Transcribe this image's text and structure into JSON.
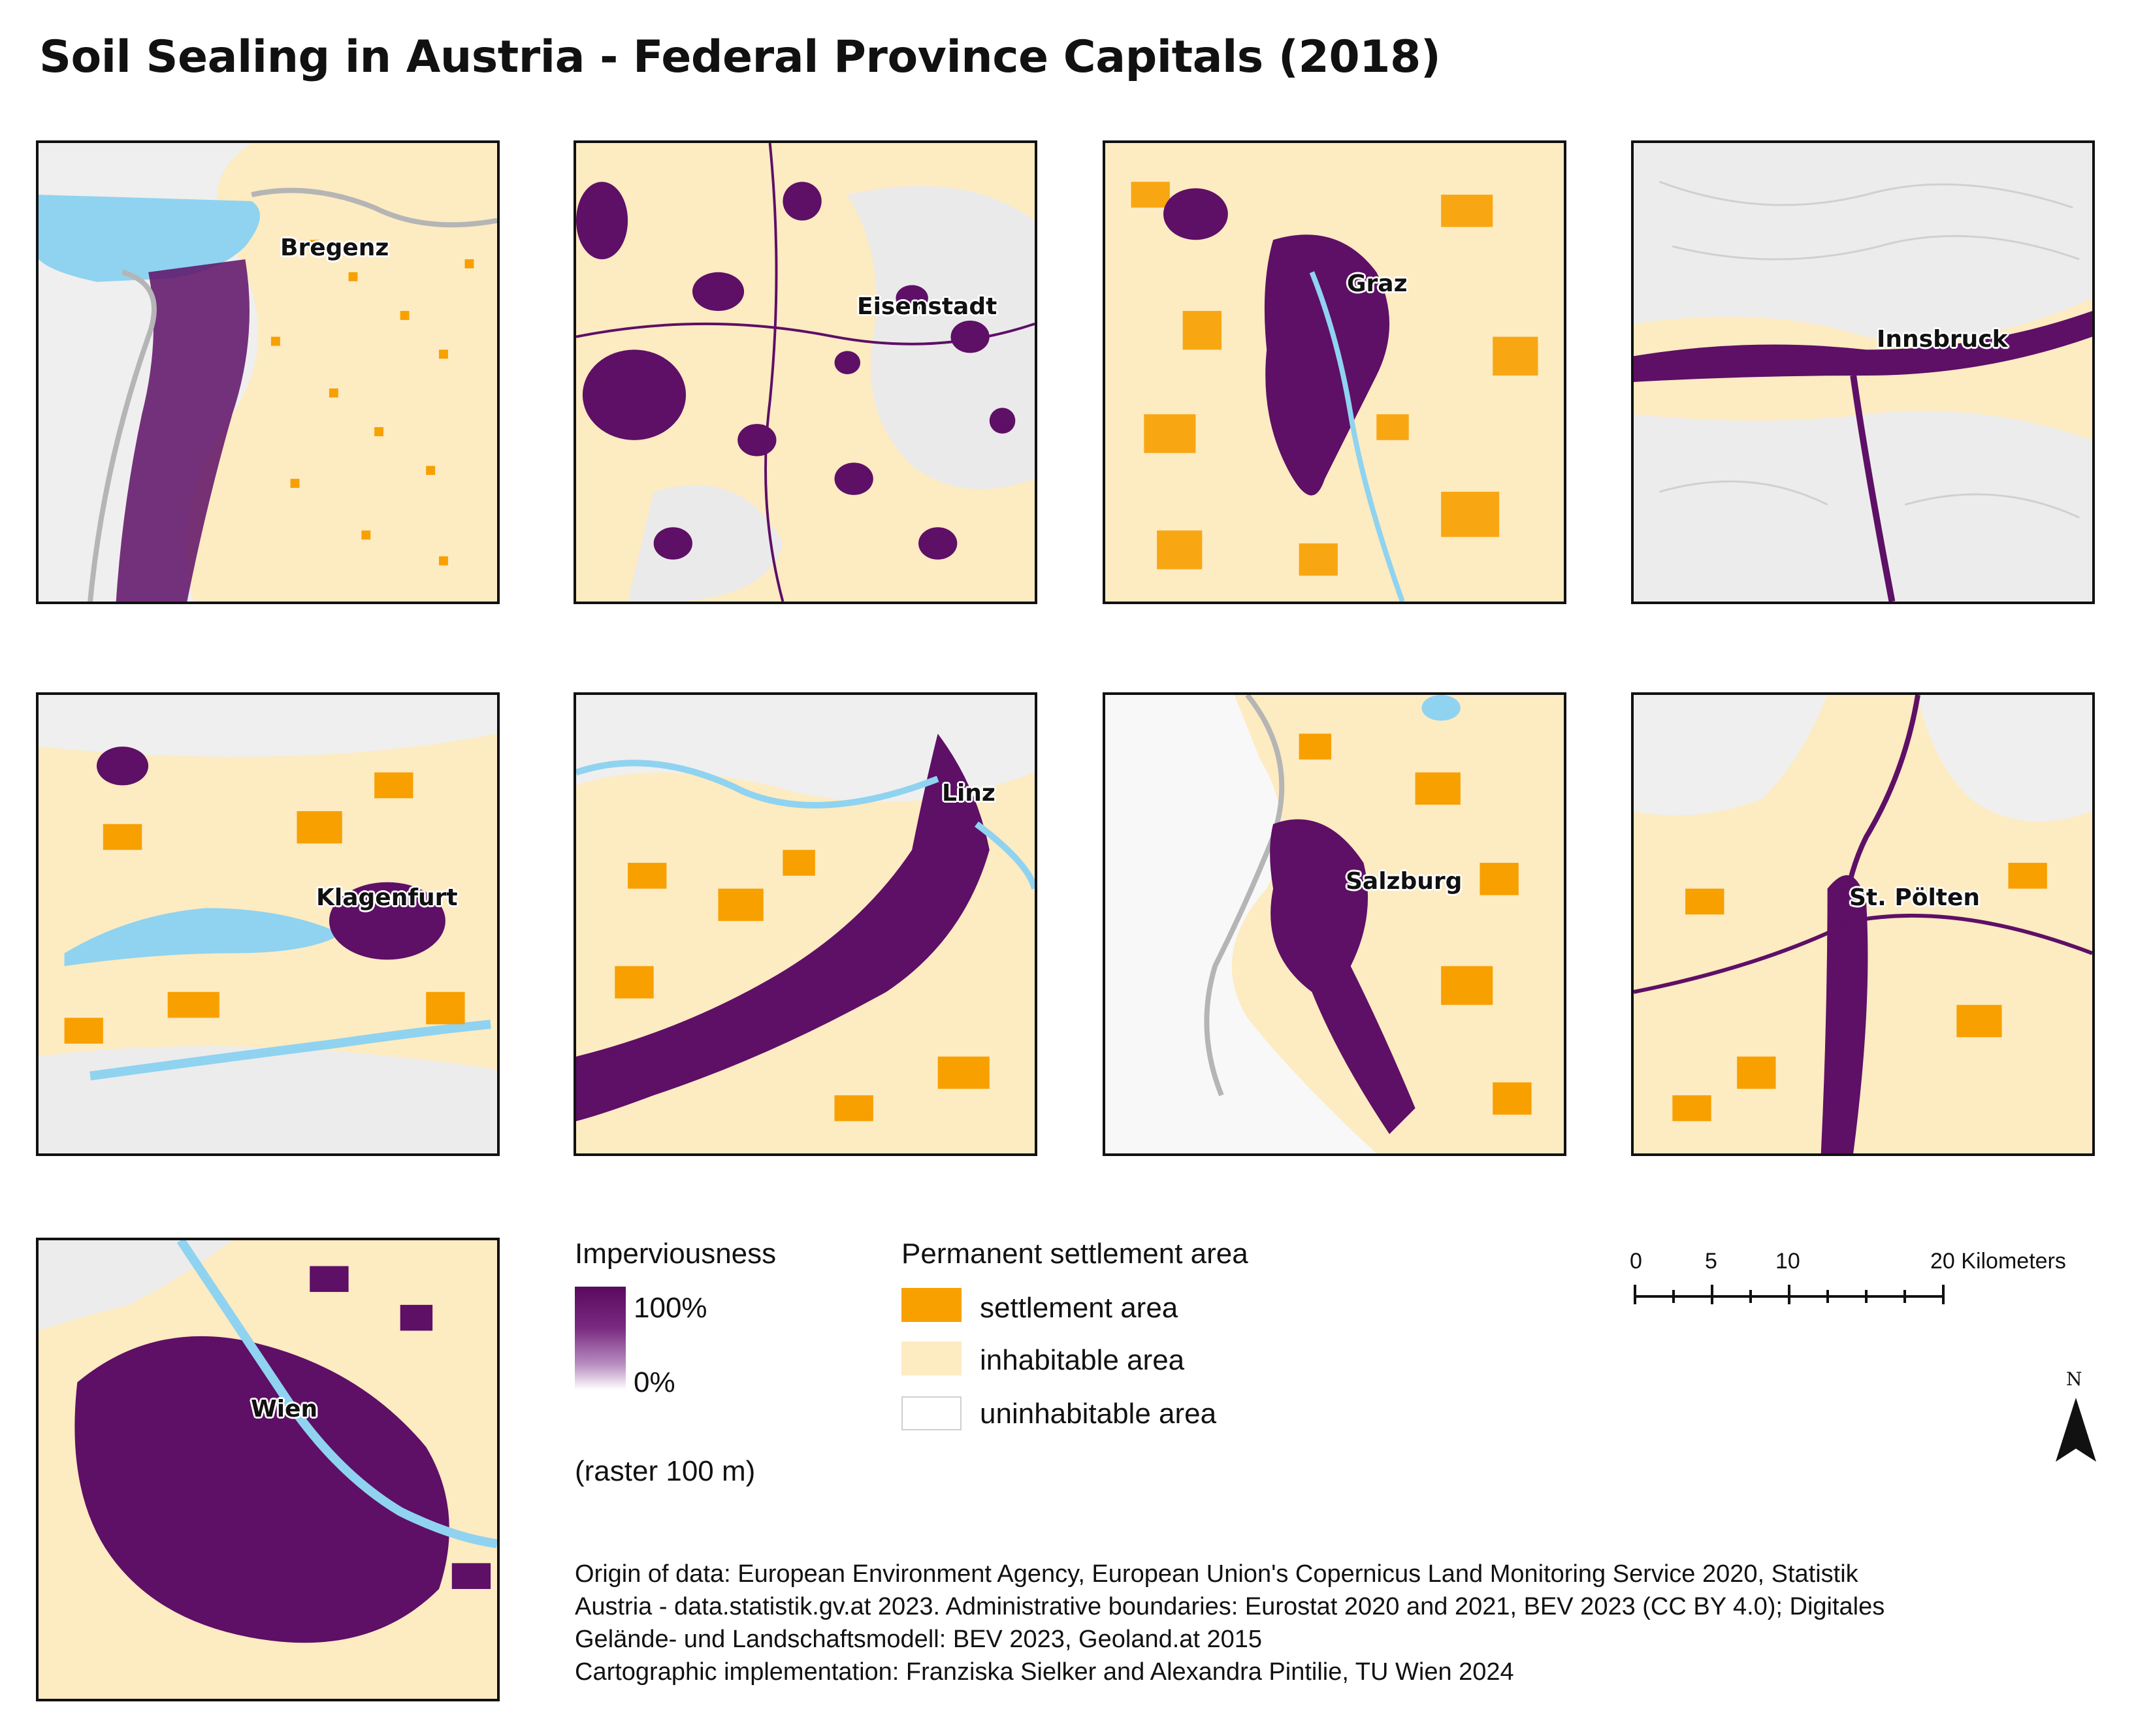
{
  "title": "Soil Sealing in Austria - Federal Province Capitals (2018)",
  "panels": [
    {
      "name": "Bregenz"
    },
    {
      "name": "Eisenstadt"
    },
    {
      "name": "Graz"
    },
    {
      "name": "Innsbruck"
    },
    {
      "name": "Klagenfurt"
    },
    {
      "name": "Linz"
    },
    {
      "name": "Salzburg"
    },
    {
      "name": "St. Pölten"
    },
    {
      "name": "Wien"
    }
  ],
  "legend": {
    "imperviousness_title": "Imperviousness",
    "imperviousness_max": "100%",
    "imperviousness_min": "0%",
    "raster_note": "(raster 100 m)",
    "settlement_title": "Permanent settlement area",
    "items": [
      {
        "label": "settlement area",
        "color": "#f7a000"
      },
      {
        "label": "inhabitable area",
        "color": "#fdebc2"
      },
      {
        "label": "uninhabitable area",
        "color": "#ffffff"
      }
    ],
    "gradient_colors": [
      "#5a0a5e",
      "#ffffff"
    ]
  },
  "scalebar": {
    "ticks": [
      "0",
      "5",
      "10",
      "20 Kilometers"
    ]
  },
  "north_arrow": {
    "label": "N"
  },
  "credits": [
    "Origin of data: European Environment Agency, European Union's Copernicus Land Monitoring Service 2020, Statistik",
    "Austria - data.statistik.gv.at 2023. Administrative boundaries: Eurostat 2020 and 2021, BEV 2023 (CC BY 4.0); Digitales",
    "Gelände- und Landschaftsmodell: BEV 2023, Geoland.at 2015",
    "Cartographic implementation: Franziska Sielker and Alexandra Pintilie, TU Wien 2024"
  ],
  "colors": {
    "impervious": "#5e0f66",
    "settlement": "#f7a000",
    "inhabitable": "#fdebc2",
    "water": "#8fd3f0",
    "relief": "#ececec",
    "border": "#b5b5b5"
  }
}
